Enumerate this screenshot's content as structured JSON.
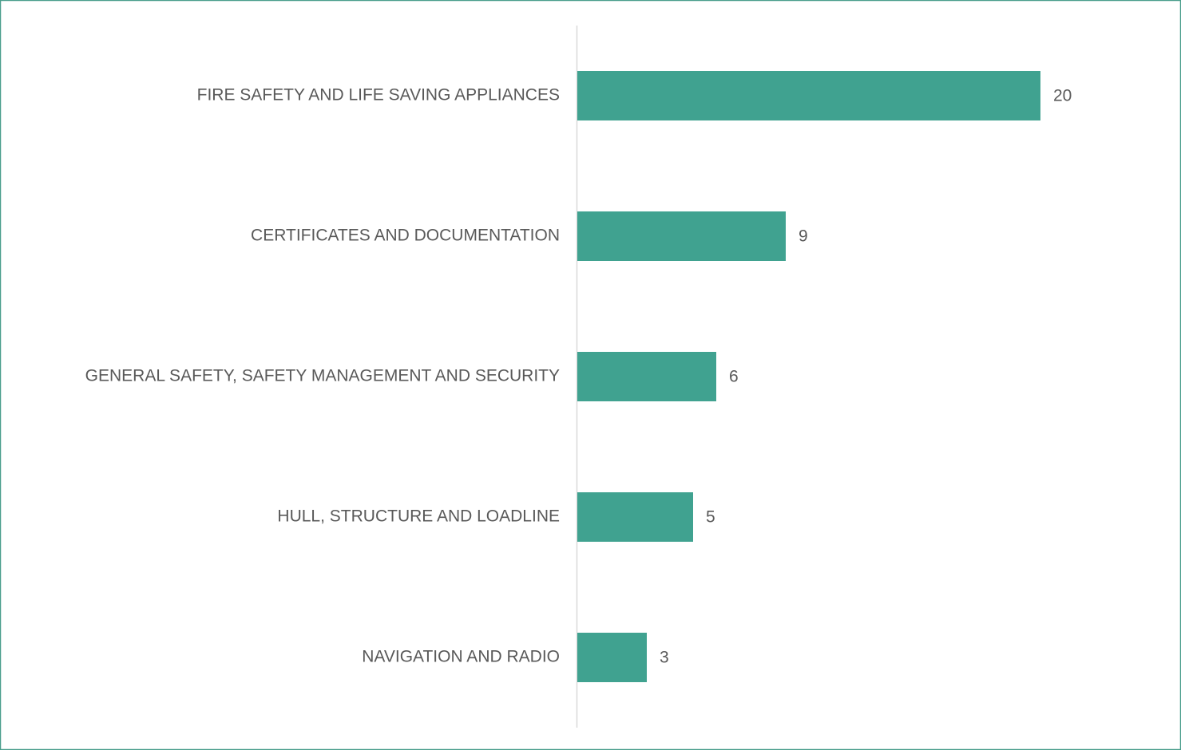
{
  "chart_data": {
    "type": "bar",
    "orientation": "horizontal",
    "categories": [
      "FIRE SAFETY AND LIFE SAVING APPLIANCES",
      "CERTIFICATES AND DOCUMENTATION",
      "GENERAL SAFETY, SAFETY MANAGEMENT AND SECURITY",
      "HULL, STRUCTURE AND LOADLINE",
      "NAVIGATION AND RADIO"
    ],
    "values": [
      20,
      9,
      6,
      5,
      3
    ],
    "color": "#40a290"
  }
}
